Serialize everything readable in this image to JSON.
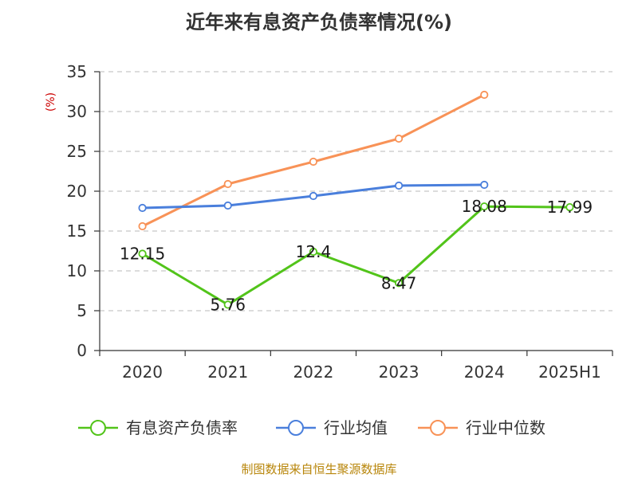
{
  "chart_data": {
    "type": "line",
    "title": "近年来有息资产负债率情况(%)",
    "ylabel": "(%)",
    "xlabel": "",
    "categories": [
      "2020",
      "2021",
      "2022",
      "2023",
      "2024",
      "2025H1"
    ],
    "ylim": [
      0,
      35
    ],
    "yticks": [
      0,
      5,
      10,
      15,
      20,
      25,
      30,
      35
    ],
    "grid": "horizontal-dashed",
    "legend_position": "bottom",
    "series": [
      {
        "name": "有息资产负债率",
        "color": "#52c41a",
        "values": [
          12.15,
          5.76,
          12.4,
          8.47,
          18.08,
          17.99
        ],
        "labels": [
          "12.15",
          "5.76",
          "12.4",
          "8.47",
          "18.08",
          "17.99"
        ]
      },
      {
        "name": "行业均值",
        "color": "#4a7fdc",
        "values": [
          17.9,
          18.2,
          19.4,
          20.7,
          20.8,
          null
        ]
      },
      {
        "name": "行业中位数",
        "color": "#f89257",
        "values": [
          15.6,
          20.9,
          23.7,
          26.6,
          32.1,
          null
        ]
      }
    ]
  },
  "source": "制图数据来自恒生聚源数据库"
}
